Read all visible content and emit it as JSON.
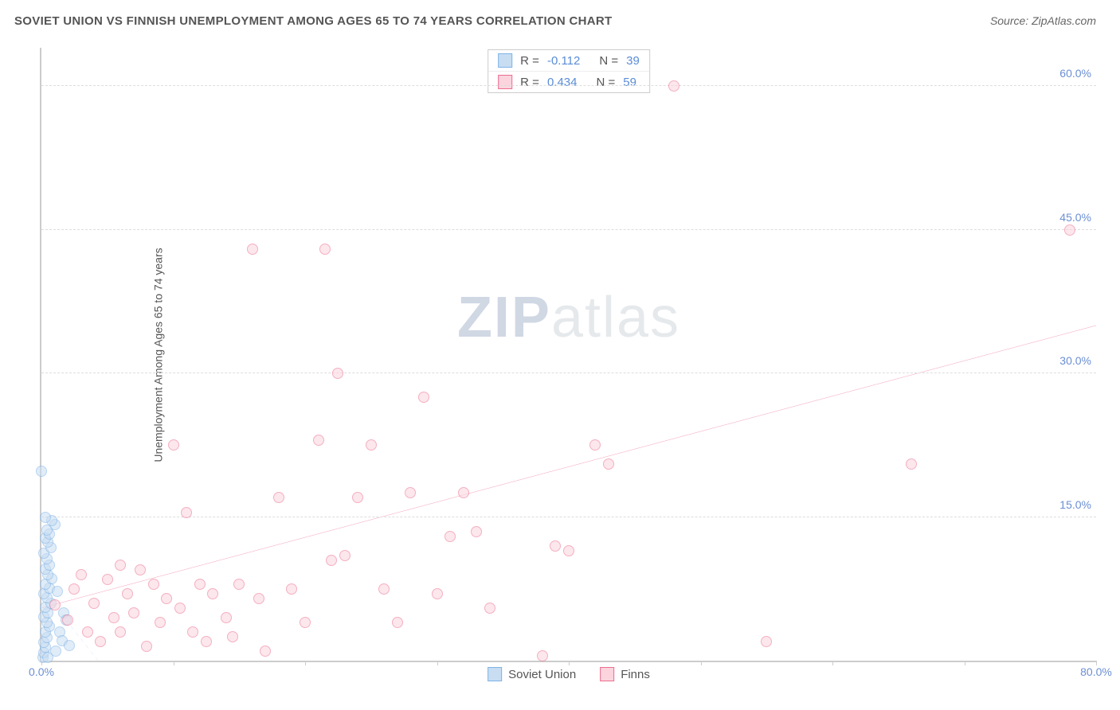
{
  "header": {
    "title": "SOVIET UNION VS FINNISH UNEMPLOYMENT AMONG AGES 65 TO 74 YEARS CORRELATION CHART",
    "source": "Source: ZipAtlas.com"
  },
  "ylabel": "Unemployment Among Ages 65 to 74 years",
  "watermark": {
    "bold": "ZIP",
    "rest": "atlas"
  },
  "chart": {
    "type": "scatter",
    "xlim": [
      0,
      80
    ],
    "ylim": [
      0,
      64
    ],
    "yticks": [
      {
        "v": 15,
        "label": "15.0%"
      },
      {
        "v": 30,
        "label": "30.0%"
      },
      {
        "v": 45,
        "label": "45.0%"
      },
      {
        "v": 60,
        "label": "60.0%"
      }
    ],
    "xtick_positions": [
      0,
      10,
      20,
      30,
      40,
      50,
      60,
      70,
      80
    ],
    "xtick_labels": {
      "start": "0.0%",
      "end": "80.0%"
    },
    "marker_radius": 7,
    "marker_stroke_width": 1.5,
    "background_color": "#ffffff",
    "grid_color": "#dddddd",
    "series": [
      {
        "key": "soviet",
        "label": "Soviet Union",
        "fill": "#c8ddf2",
        "stroke": "#7fb3e6",
        "fill_opacity": 0.55,
        "r_label": "R =",
        "r_value": "-0.112",
        "n_label": "N =",
        "n_value": "39",
        "trend": {
          "x1": 0,
          "y1": 7.5,
          "x2": 6,
          "y2": -3,
          "color": "#7fb3e6",
          "width": 1.5,
          "dash": "5,5"
        },
        "points": [
          [
            0.1,
            0.3
          ],
          [
            0.2,
            0.8
          ],
          [
            0.3,
            1.4
          ],
          [
            0.2,
            1.9
          ],
          [
            0.4,
            2.4
          ],
          [
            0.3,
            3.0
          ],
          [
            0.6,
            3.6
          ],
          [
            0.4,
            4.0
          ],
          [
            0.2,
            4.6
          ],
          [
            0.5,
            5.0
          ],
          [
            0.3,
            5.6
          ],
          [
            0.7,
            6.0
          ],
          [
            0.4,
            6.6
          ],
          [
            0.2,
            7.0
          ],
          [
            0.6,
            7.6
          ],
          [
            0.3,
            8.0
          ],
          [
            0.8,
            8.6
          ],
          [
            0.5,
            9.0
          ],
          [
            0.3,
            9.6
          ],
          [
            0.6,
            10.0
          ],
          [
            0.4,
            10.6
          ],
          [
            0.2,
            11.2
          ],
          [
            0.7,
            11.8
          ],
          [
            0.5,
            12.4
          ],
          [
            0.3,
            12.8
          ],
          [
            0.6,
            13.2
          ],
          [
            0.4,
            13.6
          ],
          [
            1.0,
            14.2
          ],
          [
            0.8,
            14.6
          ],
          [
            0.3,
            15.0
          ],
          [
            0.0,
            19.8
          ],
          [
            0.5,
            0.3
          ],
          [
            1.1,
            1.0
          ],
          [
            1.4,
            3.0
          ],
          [
            1.7,
            5.0
          ],
          [
            1.2,
            7.2
          ],
          [
            1.6,
            2.1
          ],
          [
            1.9,
            4.2
          ],
          [
            2.1,
            1.6
          ]
        ]
      },
      {
        "key": "finns",
        "label": "Finns",
        "fill": "#fbd4de",
        "stroke": "#ec6e8f",
        "fill_opacity": 0.55,
        "r_label": "R =",
        "r_value": "0.434",
        "n_label": "N =",
        "n_value": "59",
        "trend": {
          "x1": 0,
          "y1": 5.5,
          "x2": 80,
          "y2": 35,
          "color": "#e94b7b",
          "width": 2.2,
          "dash": ""
        },
        "points": [
          [
            1.0,
            5.8
          ],
          [
            2.0,
            4.2
          ],
          [
            2.5,
            7.5
          ],
          [
            3.0,
            9.0
          ],
          [
            4.0,
            6.0
          ],
          [
            4.5,
            2.0
          ],
          [
            5.0,
            8.5
          ],
          [
            5.5,
            4.5
          ],
          [
            6.0,
            10.0
          ],
          [
            6.5,
            7.0
          ],
          [
            7.0,
            5.0
          ],
          [
            7.5,
            9.5
          ],
          [
            8.0,
            1.5
          ],
          [
            8.5,
            8.0
          ],
          [
            9.0,
            4.0
          ],
          [
            9.5,
            6.5
          ],
          [
            10.0,
            22.5
          ],
          [
            10.5,
            5.5
          ],
          [
            11.0,
            15.5
          ],
          [
            12.0,
            8.0
          ],
          [
            12.5,
            2.0
          ],
          [
            13.0,
            7.0
          ],
          [
            14.0,
            4.5
          ],
          [
            15.0,
            8.0
          ],
          [
            16.0,
            43.0
          ],
          [
            16.5,
            6.5
          ],
          [
            17.0,
            1.0
          ],
          [
            18.0,
            17.0
          ],
          [
            19.0,
            7.5
          ],
          [
            20.0,
            4.0
          ],
          [
            21.0,
            23.0
          ],
          [
            21.5,
            43.0
          ],
          [
            22.0,
            10.5
          ],
          [
            22.5,
            30.0
          ],
          [
            23.0,
            11.0
          ],
          [
            24.0,
            17.0
          ],
          [
            25.0,
            22.5
          ],
          [
            26.0,
            7.5
          ],
          [
            27.0,
            4.0
          ],
          [
            28.0,
            17.5
          ],
          [
            29.0,
            27.5
          ],
          [
            30.0,
            7.0
          ],
          [
            31.0,
            13.0
          ],
          [
            32.0,
            17.5
          ],
          [
            33.0,
            13.5
          ],
          [
            34.0,
            5.5
          ],
          [
            38.0,
            0.5
          ],
          [
            39.0,
            12.0
          ],
          [
            40.0,
            11.5
          ],
          [
            42.0,
            22.5
          ],
          [
            43.0,
            20.5
          ],
          [
            48.0,
            60.0
          ],
          [
            55.0,
            2.0
          ],
          [
            66.0,
            20.5
          ],
          [
            78.0,
            45.0
          ],
          [
            3.5,
            3.0
          ],
          [
            6.0,
            3.0
          ],
          [
            11.5,
            3.0
          ],
          [
            14.5,
            2.5
          ]
        ]
      }
    ]
  },
  "legend_bottom": [
    {
      "label": "Soviet Union",
      "fill": "#c8ddf2",
      "stroke": "#7fb3e6"
    },
    {
      "label": "Finns",
      "fill": "#fbd4de",
      "stroke": "#ec6e8f"
    }
  ]
}
